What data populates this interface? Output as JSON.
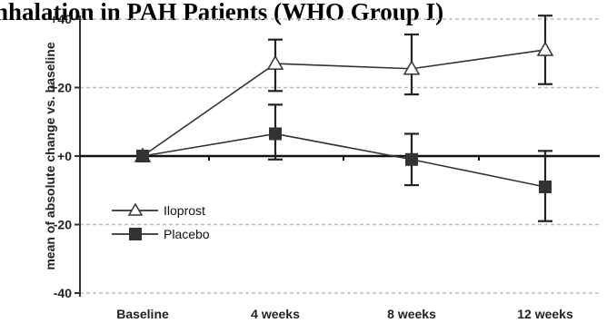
{
  "chart_data": {
    "type": "line",
    "title": "nhalation in PAH Patients (WHO Group I)",
    "ylabel": "mean of absolute change vs. baseline",
    "xlabel": "",
    "categories": [
      "Baseline",
      "4 weeks",
      "8 weeks",
      "12 weeks"
    ],
    "ylim": [
      -40,
      40
    ],
    "yticks": [
      40,
      20,
      0,
      -20,
      -40
    ],
    "ytick_labels": [
      "+40",
      "+20",
      "+0",
      "-20",
      "-40"
    ],
    "grid": true,
    "legend_position": "bottom-left",
    "series": [
      {
        "name": "Iloprost",
        "marker": "open-triangle",
        "color": "#333333",
        "values": [
          0,
          27,
          25.5,
          31
        ],
        "error_upper": [
          0,
          34,
          35.5,
          41
        ],
        "error_lower": [
          0,
          19,
          18,
          21
        ]
      },
      {
        "name": "Placebo",
        "marker": "filled-square",
        "color": "#333333",
        "values": [
          0,
          6.5,
          -1,
          -9
        ],
        "error_upper": [
          0,
          15,
          6.5,
          1.5
        ],
        "error_lower": [
          0,
          -1,
          -8.5,
          -19
        ]
      }
    ]
  }
}
